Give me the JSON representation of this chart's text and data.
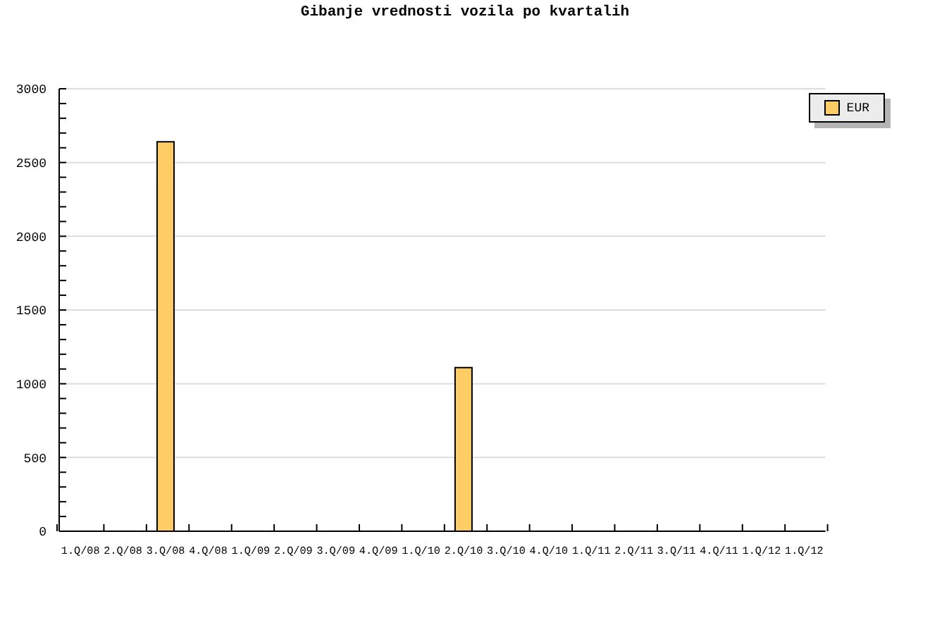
{
  "chart_data": {
    "type": "bar",
    "title": "Gibanje vrednosti vozila po kvartalih",
    "categories": [
      "1.Q/08",
      "2.Q/08",
      "3.Q/08",
      "4.Q/08",
      "1.Q/09",
      "2.Q/09",
      "3.Q/09",
      "4.Q/09",
      "1.Q/10",
      "2.Q/10",
      "3.Q/10",
      "4.Q/10",
      "1.Q/11",
      "2.Q/11",
      "3.Q/11",
      "4.Q/11",
      "1.Q/12",
      "1.Q/12"
    ],
    "series": [
      {
        "name": "EUR",
        "color": "#ffcc66",
        "values": [
          null,
          null,
          2640,
          null,
          null,
          null,
          null,
          null,
          null,
          1110,
          null,
          null,
          null,
          null,
          null,
          null,
          null,
          null
        ]
      }
    ],
    "ylim": [
      0,
      3000
    ],
    "yticks": [
      0,
      {
        "value": 100,
        "label": null
      },
      {
        "value": 200,
        "label": null
      },
      {
        "value": 300,
        "label": null
      },
      {
        "value": 400,
        "label": null
      },
      500,
      {
        "value": 600,
        "label": null
      },
      {
        "value": 700,
        "label": null
      },
      {
        "value": 800,
        "label": null
      },
      {
        "value": 900,
        "label": null
      },
      1000,
      {
        "value": 1100,
        "label": null
      },
      {
        "value": 1200,
        "label": null
      },
      {
        "value": 1300,
        "label": null
      },
      {
        "value": 1400,
        "label": null
      },
      1500,
      {
        "value": 1600,
        "label": null
      },
      {
        "value": 1700,
        "label": null
      },
      {
        "value": 1800,
        "label": null
      },
      {
        "value": 1900,
        "label": null
      },
      2000,
      {
        "value": 2100,
        "label": null
      },
      {
        "value": 2200,
        "label": null
      },
      {
        "value": 2300,
        "label": null
      },
      {
        "value": 2400,
        "label": null
      },
      2500,
      {
        "value": 2600,
        "label": null
      },
      {
        "value": 2700,
        "label": null
      },
      {
        "value": 2800,
        "label": null
      },
      {
        "value": 2900,
        "label": null
      },
      3000
    ],
    "grid": "y",
    "legend": "top right"
  }
}
